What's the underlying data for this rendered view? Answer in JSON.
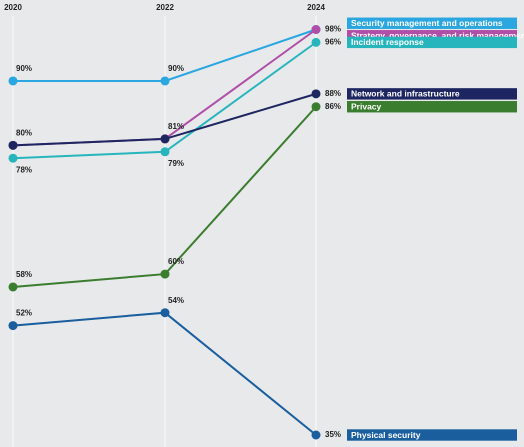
{
  "chart_data": {
    "type": "line",
    "categories": [
      "2020",
      "2022",
      "2024"
    ],
    "series": [
      {
        "name": "Security management and operations",
        "color": "#2aa6e0",
        "values": [
          90,
          90,
          98
        ],
        "value_labels": [
          "90%",
          "90%",
          "98%"
        ]
      },
      {
        "name": "Strategy, governance, and risk management",
        "color": "#b04ea8",
        "values": [
          80,
          81,
          98
        ]
      },
      {
        "name": "Incident response",
        "color": "#27b5bd",
        "values": [
          78,
          79,
          96
        ],
        "value_labels": [
          "78%",
          "79%",
          "96%"
        ]
      },
      {
        "name": "Network and infrastructure",
        "color": "#1d2660",
        "values": [
          80,
          81,
          88
        ],
        "value_labels": [
          "80%",
          "81%",
          "88%"
        ]
      },
      {
        "name": "Privacy",
        "color": "#3b7d2e",
        "values": [
          58,
          60,
          86
        ],
        "value_labels": [
          "58%",
          "60%",
          "86%"
        ]
      },
      {
        "name": "Physical security",
        "color": "#1a5e9e",
        "values": [
          52,
          54,
          35
        ],
        "value_labels": [
          "52%",
          "54%",
          "35%"
        ]
      }
    ]
  }
}
